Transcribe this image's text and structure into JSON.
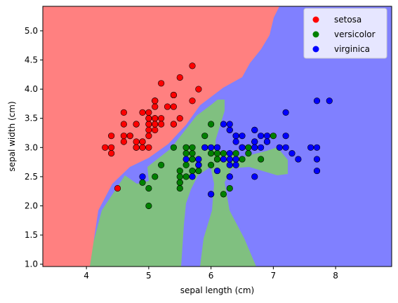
{
  "chart_data": {
    "type": "scatter",
    "title": "",
    "xlabel": "sepal length (cm)",
    "ylabel": "sepal width (cm)",
    "xlim": [
      3.3,
      8.9
    ],
    "ylim": [
      0.96,
      5.42
    ],
    "xticks": [
      4,
      5,
      6,
      7,
      8
    ],
    "yticks": [
      1.0,
      1.5,
      2.0,
      2.5,
      3.0,
      3.5,
      4.0,
      4.5,
      5.0
    ],
    "xtick_labels": [
      "4",
      "5",
      "6",
      "7",
      "8"
    ],
    "ytick_labels": [
      "1.0",
      "1.5",
      "2.0",
      "2.5",
      "3.0",
      "3.5",
      "4.0",
      "4.5",
      "5.0"
    ],
    "grid": false,
    "legend_position": "top-right",
    "background": "decision-regions",
    "region_colors": {
      "setosa": "#ff8080",
      "versicolor": "#80c080",
      "virginica": "#8080ff"
    },
    "series": [
      {
        "name": "setosa",
        "color": "#ff0000",
        "points": [
          [
            5.1,
            3.5
          ],
          [
            4.9,
            3.0
          ],
          [
            4.7,
            3.2
          ],
          [
            4.6,
            3.1
          ],
          [
            5.0,
            3.6
          ],
          [
            5.4,
            3.9
          ],
          [
            4.6,
            3.4
          ],
          [
            5.0,
            3.4
          ],
          [
            4.4,
            2.9
          ],
          [
            4.9,
            3.1
          ],
          [
            5.4,
            3.7
          ],
          [
            4.8,
            3.4
          ],
          [
            4.8,
            3.0
          ],
          [
            4.3,
            3.0
          ],
          [
            5.8,
            4.0
          ],
          [
            5.7,
            4.4
          ],
          [
            5.4,
            3.9
          ],
          [
            5.1,
            3.5
          ],
          [
            5.7,
            3.8
          ],
          [
            5.1,
            3.8
          ],
          [
            5.4,
            3.4
          ],
          [
            5.1,
            3.7
          ],
          [
            4.6,
            3.6
          ],
          [
            5.1,
            3.3
          ],
          [
            4.8,
            3.4
          ],
          [
            5.0,
            3.0
          ],
          [
            5.0,
            3.4
          ],
          [
            5.2,
            3.5
          ],
          [
            5.2,
            3.4
          ],
          [
            4.7,
            3.2
          ],
          [
            4.8,
            3.1
          ],
          [
            5.4,
            3.4
          ],
          [
            5.2,
            4.1
          ],
          [
            5.5,
            4.2
          ],
          [
            4.9,
            3.1
          ],
          [
            5.0,
            3.2
          ],
          [
            5.5,
            3.5
          ],
          [
            4.9,
            3.6
          ],
          [
            4.4,
            3.0
          ],
          [
            5.1,
            3.4
          ],
          [
            5.0,
            3.5
          ],
          [
            4.5,
            2.3
          ],
          [
            4.4,
            3.2
          ],
          [
            5.0,
            3.5
          ],
          [
            5.1,
            3.8
          ],
          [
            4.8,
            3.0
          ],
          [
            5.1,
            3.8
          ],
          [
            4.6,
            3.2
          ],
          [
            5.3,
            3.7
          ],
          [
            5.0,
            3.3
          ]
        ]
      },
      {
        "name": "versicolor",
        "color": "#008000",
        "points": [
          [
            7.0,
            3.2
          ],
          [
            6.4,
            3.2
          ],
          [
            6.9,
            3.1
          ],
          [
            5.5,
            2.3
          ],
          [
            6.5,
            2.8
          ],
          [
            5.7,
            2.8
          ],
          [
            6.3,
            3.3
          ],
          [
            4.9,
            2.4
          ],
          [
            6.6,
            2.9
          ],
          [
            5.2,
            2.7
          ],
          [
            5.0,
            2.0
          ],
          [
            5.9,
            3.0
          ],
          [
            6.0,
            2.2
          ],
          [
            6.1,
            2.9
          ],
          [
            5.6,
            2.9
          ],
          [
            6.7,
            3.1
          ],
          [
            5.6,
            3.0
          ],
          [
            5.8,
            2.7
          ],
          [
            6.2,
            2.2
          ],
          [
            5.6,
            2.5
          ],
          [
            5.9,
            3.2
          ],
          [
            6.1,
            2.8
          ],
          [
            6.3,
            2.5
          ],
          [
            6.1,
            2.8
          ],
          [
            6.4,
            2.9
          ],
          [
            6.6,
            3.0
          ],
          [
            6.8,
            2.8
          ],
          [
            6.7,
            3.0
          ],
          [
            6.0,
            2.9
          ],
          [
            5.7,
            2.6
          ],
          [
            5.5,
            2.4
          ],
          [
            5.5,
            2.4
          ],
          [
            5.8,
            2.7
          ],
          [
            6.0,
            2.7
          ],
          [
            5.4,
            3.0
          ],
          [
            6.0,
            3.4
          ],
          [
            6.7,
            3.1
          ],
          [
            6.3,
            2.3
          ],
          [
            5.6,
            3.0
          ],
          [
            5.5,
            2.5
          ],
          [
            5.5,
            2.6
          ],
          [
            6.1,
            3.0
          ],
          [
            5.8,
            2.6
          ],
          [
            5.0,
            2.3
          ],
          [
            5.6,
            2.7
          ],
          [
            5.7,
            3.0
          ],
          [
            5.7,
            2.9
          ],
          [
            6.2,
            2.9
          ],
          [
            5.1,
            2.5
          ],
          [
            5.7,
            2.8
          ]
        ]
      },
      {
        "name": "virginica",
        "color": "#0000ff",
        "points": [
          [
            6.3,
            3.3
          ],
          [
            5.8,
            2.7
          ],
          [
            7.1,
            3.0
          ],
          [
            6.3,
            2.9
          ],
          [
            6.5,
            3.0
          ],
          [
            7.6,
            3.0
          ],
          [
            4.9,
            2.5
          ],
          [
            7.3,
            2.9
          ],
          [
            6.7,
            2.5
          ],
          [
            7.2,
            3.6
          ],
          [
            6.5,
            3.2
          ],
          [
            6.4,
            2.7
          ],
          [
            6.8,
            3.0
          ],
          [
            5.7,
            2.5
          ],
          [
            5.8,
            2.8
          ],
          [
            6.4,
            3.2
          ],
          [
            6.5,
            3.0
          ],
          [
            7.7,
            3.8
          ],
          [
            7.7,
            2.6
          ],
          [
            6.0,
            2.2
          ],
          [
            6.9,
            3.2
          ],
          [
            5.6,
            2.8
          ],
          [
            7.7,
            2.8
          ],
          [
            6.3,
            2.7
          ],
          [
            6.7,
            3.3
          ],
          [
            7.2,
            3.2
          ],
          [
            6.2,
            2.8
          ],
          [
            6.1,
            3.0
          ],
          [
            6.4,
            2.8
          ],
          [
            7.2,
            3.0
          ],
          [
            7.4,
            2.8
          ],
          [
            7.9,
            3.8
          ],
          [
            6.4,
            2.8
          ],
          [
            6.3,
            2.8
          ],
          [
            6.1,
            2.6
          ],
          [
            7.7,
            3.0
          ],
          [
            6.3,
            3.4
          ],
          [
            6.4,
            3.1
          ],
          [
            6.0,
            3.0
          ],
          [
            6.9,
            3.1
          ],
          [
            6.7,
            3.1
          ],
          [
            6.9,
            3.1
          ],
          [
            5.8,
            2.7
          ],
          [
            6.8,
            3.2
          ],
          [
            6.7,
            3.3
          ],
          [
            6.7,
            3.0
          ],
          [
            6.3,
            2.5
          ],
          [
            6.5,
            3.0
          ],
          [
            6.2,
            3.4
          ],
          [
            5.9,
            3.0
          ]
        ]
      }
    ]
  }
}
